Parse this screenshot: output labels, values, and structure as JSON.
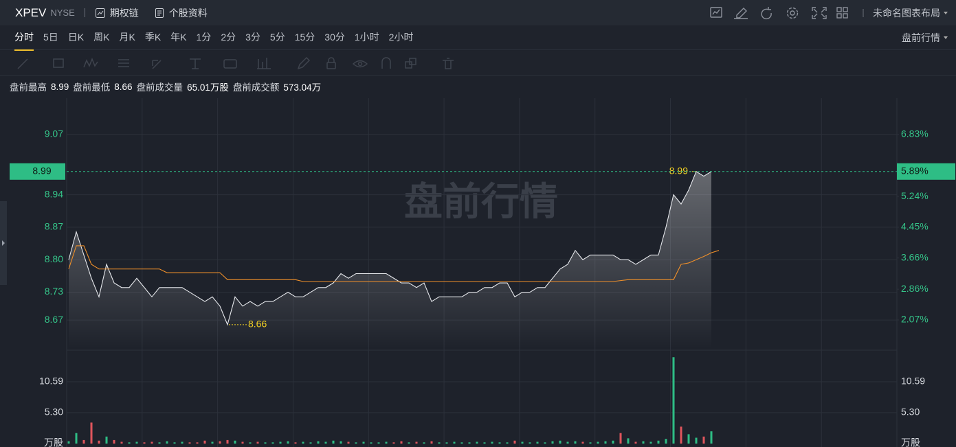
{
  "header": {
    "symbol": "XPEV",
    "exchange": "NYSE",
    "buttons": [
      "期权链",
      "个股资料"
    ],
    "layout": "未命名图表布局"
  },
  "timeframes": [
    "分时",
    "5日",
    "日K",
    "周K",
    "月K",
    "季K",
    "年K",
    "1分",
    "2分",
    "3分",
    "5分",
    "15分",
    "30分",
    "1小时",
    "2小时"
  ],
  "active_timeframe": 0,
  "session": "盘前行情",
  "stats": [
    {
      "label": "盘前最高",
      "value": "8.99"
    },
    {
      "label": "盘前最低",
      "value": "8.66"
    },
    {
      "label": "盘前成交量",
      "value": "65.01万股"
    },
    {
      "label": "盘前成交额",
      "value": "573.04万"
    }
  ],
  "watermark": "盘前行情",
  "chart_data": [
    {
      "type": "line",
      "ylim": [
        8.608,
        9.148
      ],
      "yticks": [
        8.67,
        8.73,
        {
          "value": 8.8,
          "label": "8.80"
        },
        8.87,
        8.94,
        9.07
      ],
      "y2lim": [
        1.33,
        7.76
      ],
      "y2ticks": [
        {
          "value": 2.07,
          "label": "2.07%"
        },
        {
          "value": 2.86,
          "label": "2.86%"
        },
        {
          "value": 3.66,
          "label": "3.66%"
        },
        {
          "value": 4.45,
          "label": "4.45%"
        },
        {
          "value": 5.24,
          "label": "5.24%"
        },
        {
          "value": 6.83,
          "label": "6.83%"
        }
      ],
      "last": 8.99,
      "last_pct": {
        "value": 5.89,
        "label": "5.89%"
      },
      "high": 8.99,
      "low": 8.66,
      "series": [
        {
          "color": "#e6e8ec",
          "values": [
            8.8,
            8.86,
            8.81,
            8.76,
            8.72,
            8.79,
            8.75,
            8.74,
            8.74,
            8.76,
            8.74,
            8.72,
            8.74,
            8.74,
            8.74,
            8.74,
            8.73,
            8.72,
            8.71,
            8.72,
            8.7,
            8.66,
            8.72,
            8.7,
            8.71,
            8.7,
            8.71,
            8.71,
            8.72,
            8.73,
            8.72,
            8.72,
            8.73,
            8.74,
            8.74,
            8.75,
            8.77,
            8.76,
            8.77,
            8.77,
            8.77,
            8.77,
            8.77,
            8.76,
            8.75,
            8.75,
            8.74,
            8.75,
            8.71,
            8.72,
            8.72,
            8.72,
            8.72,
            8.73,
            8.73,
            8.74,
            8.74,
            8.75,
            8.75,
            8.72,
            8.73,
            8.73,
            8.74,
            8.74,
            8.76,
            8.78,
            8.79,
            8.82,
            8.8,
            8.81,
            8.81,
            8.81,
            8.81,
            8.8,
            8.8,
            8.79,
            8.8,
            8.81,
            8.81,
            8.87,
            8.94,
            8.92,
            8.95,
            8.99,
            8.98,
            8.99
          ]
        },
        {
          "color": "#f0902a",
          "values": [
            8.78,
            8.83,
            8.83,
            8.79,
            8.78,
            8.78,
            8.78,
            8.78,
            8.78,
            8.78,
            8.78,
            8.78,
            8.78,
            8.772,
            8.772,
            8.772,
            8.772,
            8.772,
            8.772,
            8.772,
            8.772,
            8.757,
            8.757,
            8.757,
            8.757,
            8.757,
            8.757,
            8.757,
            8.757,
            8.757,
            8.757,
            8.753,
            8.753,
            8.753,
            8.753,
            8.753,
            8.753,
            8.753,
            8.753,
            8.753,
            8.753,
            8.753,
            8.753,
            8.753,
            8.753,
            8.753,
            8.753,
            8.753,
            8.753,
            8.753,
            8.753,
            8.753,
            8.753,
            8.753,
            8.753,
            8.753,
            8.753,
            8.753,
            8.753,
            8.753,
            8.753,
            8.753,
            8.753,
            8.753,
            8.753,
            8.753,
            8.753,
            8.753,
            8.753,
            8.753,
            8.753,
            8.753,
            8.753,
            8.755,
            8.757,
            8.757,
            8.757,
            8.757,
            8.757,
            8.757,
            8.757,
            8.79,
            8.793,
            8.8,
            8.807,
            8.815,
            8.82
          ]
        }
      ]
    },
    {
      "type": "bar",
      "ylim": [
        0,
        15.77
      ],
      "yticks": [
        {
          "value": 5.3,
          "label": "5.30"
        },
        10.59
      ],
      "unit": "万股",
      "up_color": "#2ebd85",
      "down_color": "#e0555c",
      "values": [
        0.4,
        1.8,
        0.6,
        3.6,
        0.5,
        1.2,
        0.6,
        0.3,
        0.2,
        0.3,
        0.2,
        0.3,
        0.2,
        0.4,
        0.2,
        0.3,
        0.2,
        0.2,
        0.5,
        0.3,
        0.4,
        0.6,
        0.5,
        0.3,
        0.2,
        0.3,
        0.2,
        0.2,
        0.3,
        0.4,
        0.2,
        0.3,
        0.2,
        0.4,
        0.3,
        0.5,
        0.4,
        0.3,
        0.2,
        0.3,
        0.2,
        0.2,
        0.3,
        0.2,
        0.4,
        0.2,
        0.3,
        0.2,
        0.4,
        0.2,
        0.2,
        0.3,
        0.2,
        0.2,
        0.3,
        0.2,
        0.3,
        0.2,
        0.2,
        0.5,
        0.3,
        0.2,
        0.3,
        0.2,
        0.4,
        0.5,
        0.3,
        0.4,
        0.3,
        0.2,
        0.3,
        0.4,
        0.5,
        1.8,
        0.9,
        0.3,
        0.4,
        0.3,
        0.5,
        0.8,
        14.8,
        2.9,
        1.6,
        1.0,
        1.2,
        2.1
      ]
    }
  ]
}
